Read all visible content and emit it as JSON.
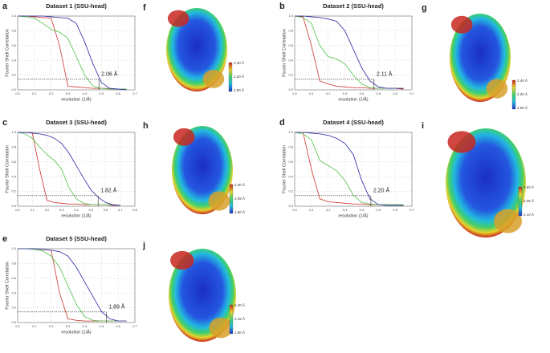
{
  "chart_data": [
    {
      "type": "line",
      "panel": "a",
      "title": "Dataset 1 (SSU-head)",
      "x_label": "resolution (1/Å)",
      "y_label": "Fourier Shell Correlation",
      "x": [
        0,
        0.05,
        0.1,
        0.15,
        0.2,
        0.25,
        0.3,
        0.35,
        0.4,
        0.45,
        0.5,
        0.55,
        0.6,
        0.65,
        0.7
      ],
      "series": [
        {
          "color": "#d0302a",
          "values": [
            1,
            1,
            0.99,
            0.98,
            0.97,
            0.6,
            0.05,
            0.04,
            0.03,
            0.02,
            0.02,
            0.02,
            0.01,
            0.01,
            null
          ]
        },
        {
          "color": "#4cc24a",
          "values": [
            1,
            0.99,
            0.97,
            0.9,
            0.82,
            0.78,
            0.7,
            0.45,
            0.2,
            0.05,
            0.02,
            0.01,
            0.01,
            0.01,
            null
          ]
        },
        {
          "color": "#2a2aa8",
          "values": [
            1,
            1,
            1,
            1,
            0.99,
            0.98,
            0.97,
            0.9,
            0.65,
            0.35,
            0.1,
            0.02,
            0.01,
            0,
            null
          ]
        }
      ],
      "threshold": 0.143,
      "cutoff": 0.485,
      "annotation": "2.06 Å",
      "xlim": [
        0,
        0.7
      ],
      "ylim": [
        0,
        1
      ],
      "xticks": [
        {
          "value": 0,
          "label": "0.0"
        },
        0.1,
        0.2,
        0.3,
        0.4,
        0.5,
        0.6,
        0.7
      ],
      "yticks": [
        {
          "value": 0,
          "label": "0.0"
        },
        0.2,
        0.4,
        0.6,
        0.8,
        {
          "value": 1,
          "label": "1.0"
        }
      ],
      "grid": true
    },
    {
      "type": "line",
      "panel": "b",
      "title": "Dataset 2 (SSU-head)",
      "x_label": "resolution (1/Å)",
      "y_label": "Fourier Shell Correlation",
      "x": [
        0,
        0.05,
        0.1,
        0.15,
        0.2,
        0.25,
        0.3,
        0.35,
        0.4,
        0.45,
        0.5,
        0.55,
        0.6,
        0.65,
        0.7
      ],
      "series": [
        {
          "color": "#d0302a",
          "values": [
            1,
            0.99,
            0.6,
            0.12,
            0.08,
            0.05,
            0.04,
            0.03,
            0.03,
            0.02,
            0.02,
            0.02,
            0.02,
            0.01,
            null
          ]
        },
        {
          "color": "#4cc24a",
          "values": [
            1,
            0.98,
            0.9,
            0.6,
            0.45,
            0.42,
            0.35,
            0.2,
            0.08,
            0.03,
            0.02,
            0.02,
            0.02,
            0.02,
            null
          ]
        },
        {
          "color": "#2a2aa8",
          "values": [
            1,
            1,
            0.99,
            0.98,
            0.96,
            0.93,
            0.8,
            0.55,
            0.3,
            0.12,
            0.04,
            0.02,
            0.02,
            0.02,
            null
          ]
        }
      ],
      "threshold": 0.143,
      "cutoff": 0.474,
      "annotation": "2.11 Å",
      "xlim": [
        0,
        0.7
      ],
      "ylim": [
        0,
        1
      ],
      "xticks": [
        {
          "value": 0,
          "label": "0.0"
        },
        0.1,
        0.2,
        0.3,
        0.4,
        0.5,
        0.6,
        0.7
      ],
      "yticks": [
        {
          "value": 0,
          "label": "0.0"
        },
        0.2,
        0.4,
        0.6,
        0.8,
        {
          "value": 1,
          "label": "1.0"
        }
      ],
      "grid": true
    },
    {
      "type": "line",
      "panel": "c",
      "title": "Dataset 3 (SSU-head)",
      "x_label": "resolution (1/Å)",
      "y_label": "Fourier Shell Correlation",
      "x": [
        0,
        0.05,
        0.1,
        0.15,
        0.2,
        0.25,
        0.3,
        0.35,
        0.4,
        0.45,
        0.5,
        0.55,
        0.6,
        0.65,
        0.7,
        0.75,
        0.8
      ],
      "series": [
        {
          "color": "#d0302a",
          "values": [
            1,
            1,
            0.99,
            0.5,
            0.08,
            0.05,
            0.04,
            0.03,
            0.03,
            0.02,
            0.02,
            0.02,
            0.02,
            0.01,
            0.01,
            null,
            null
          ]
        },
        {
          "color": "#4cc24a",
          "values": [
            1,
            0.98,
            0.92,
            0.8,
            0.7,
            0.62,
            0.5,
            0.25,
            0.1,
            0.04,
            0.02,
            0.02,
            0.02,
            0.02,
            0.01,
            null,
            null
          ]
        },
        {
          "color": "#2a2aa8",
          "values": [
            1,
            1,
            0.99,
            0.98,
            0.96,
            0.92,
            0.85,
            0.72,
            0.55,
            0.38,
            0.22,
            0.12,
            0.05,
            0.02,
            0.01,
            null,
            null
          ]
        }
      ],
      "threshold": 0.143,
      "cutoff": 0.549,
      "annotation": "1.82 Å",
      "xlim": [
        0,
        0.8
      ],
      "ylim": [
        0,
        1
      ],
      "xticks": [
        {
          "value": 0,
          "label": "0.0"
        },
        0.1,
        0.2,
        0.3,
        0.4,
        0.5,
        0.6,
        0.7,
        0.8
      ],
      "yticks": [
        {
          "value": 0,
          "label": "0.0"
        },
        0.2,
        0.4,
        0.6,
        0.8,
        {
          "value": 1,
          "label": "1.0"
        }
      ],
      "grid": true
    },
    {
      "type": "line",
      "panel": "d",
      "title": "Dataset 4 (SSU-head)",
      "x_label": "resolution (1/Å)",
      "y_label": "Fourier Shell Correlation",
      "x": [
        0,
        0.05,
        0.1,
        0.15,
        0.2,
        0.25,
        0.3,
        0.35,
        0.4,
        0.45,
        0.5,
        0.55,
        0.6,
        0.65,
        0.7
      ],
      "series": [
        {
          "color": "#d0302a",
          "values": [
            1,
            1,
            0.5,
            0.1,
            0.06,
            0.05,
            0.04,
            0.03,
            0.03,
            0.02,
            0.02,
            0.02,
            0.02,
            0.01,
            null
          ]
        },
        {
          "color": "#4cc24a",
          "values": [
            1,
            0.98,
            0.9,
            0.62,
            0.55,
            0.48,
            0.35,
            0.15,
            0.05,
            0.03,
            0.02,
            0.02,
            0.02,
            0.02,
            null
          ]
        },
        {
          "color": "#2a2aa8",
          "values": [
            1,
            1,
            0.99,
            0.98,
            0.96,
            0.92,
            0.85,
            0.7,
            0.35,
            0.1,
            0.02,
            0.01,
            0.01,
            0.01,
            null
          ]
        }
      ],
      "threshold": 0.143,
      "cutoff": 0.455,
      "annotation": "2.20 Å",
      "xlim": [
        0,
        0.7
      ],
      "ylim": [
        0,
        1
      ],
      "xticks": [
        {
          "value": 0,
          "label": "0.0"
        },
        0.1,
        0.2,
        0.3,
        0.4,
        0.5,
        0.6,
        0.7
      ],
      "yticks": [
        {
          "value": 0,
          "label": "0.0"
        },
        0.2,
        0.4,
        0.6,
        0.8,
        {
          "value": 1,
          "label": "1.0"
        }
      ],
      "grid": true
    },
    {
      "type": "line",
      "panel": "e",
      "title": "Dataset 5 (SSU-head)",
      "x_label": "resolution (1/Å)",
      "y_label": "Fourier Shell Correlation",
      "x": [
        0,
        0.05,
        0.1,
        0.15,
        0.2,
        0.25,
        0.3,
        0.35,
        0.4,
        0.45,
        0.5,
        0.55,
        0.6,
        0.65,
        0.7
      ],
      "series": [
        {
          "color": "#d0302a",
          "values": [
            1,
            1,
            1,
            0.99,
            0.98,
            0.4,
            0.05,
            0.03,
            0.02,
            0.02,
            0.02,
            0.02,
            0.02,
            0.02,
            null
          ]
        },
        {
          "color": "#4cc24a",
          "values": [
            1,
            1,
            0.99,
            0.97,
            0.9,
            0.75,
            0.5,
            0.25,
            0.08,
            0.03,
            0.02,
            0.02,
            0.02,
            0.02,
            null
          ]
        },
        {
          "color": "#2a2aa8",
          "values": [
            1,
            1,
            1,
            0.99,
            0.98,
            0.96,
            0.9,
            0.75,
            0.55,
            0.35,
            0.15,
            0.05,
            0.02,
            0.02,
            null
          ]
        }
      ],
      "threshold": 0.143,
      "cutoff": 0.529,
      "annotation": "1.89 Å",
      "xlim": [
        0,
        0.7
      ],
      "ylim": [
        0,
        1
      ],
      "xticks": [
        {
          "value": 0,
          "label": "0.0"
        },
        0.1,
        0.2,
        0.3,
        0.4,
        0.5,
        0.6,
        0.7
      ],
      "yticks": [
        {
          "value": 0,
          "label": "0.0"
        },
        0.2,
        0.4,
        0.6,
        0.8,
        {
          "value": 1,
          "label": "1.0"
        }
      ],
      "grid": true
    }
  ],
  "maps": [
    {
      "panel": "f",
      "colorbar": [
        "2.40 Å",
        "2.20 Å",
        "2.00 Å"
      ]
    },
    {
      "panel": "g",
      "colorbar": [
        "2.40 Å",
        "2.20 Å",
        "2.00 Å"
      ]
    },
    {
      "panel": "h",
      "colorbar": [
        "2.30 Å",
        "2.05 Å",
        "1.80 Å"
      ]
    },
    {
      "panel": "i",
      "colorbar": [
        "2.60 Å",
        "2.35 Å",
        "2.10 Å"
      ]
    },
    {
      "panel": "j",
      "colorbar": [
        "2.40 Å",
        "2.15 Å",
        "1.90 Å"
      ]
    }
  ]
}
